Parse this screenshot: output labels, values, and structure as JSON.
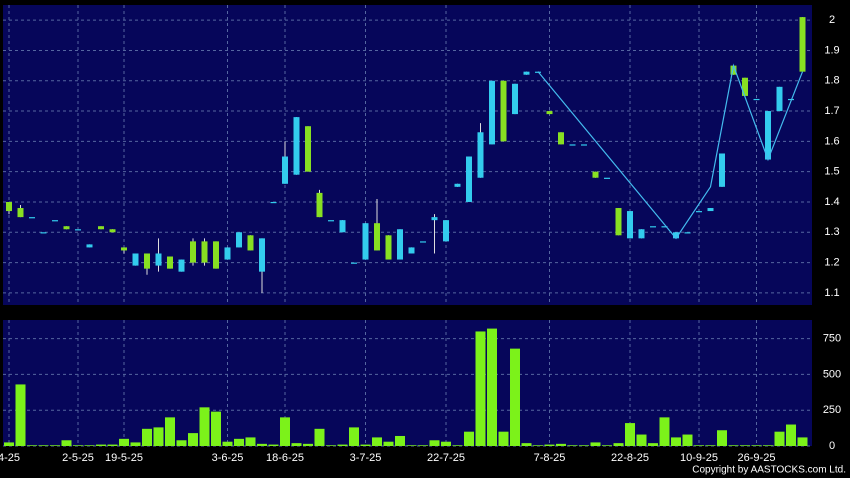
{
  "chart_data": {
    "type": "candlestick",
    "categories": [
      "4-25",
      null,
      null,
      null,
      null,
      null,
      "2-5-25",
      null,
      null,
      null,
      "19-5-25",
      null,
      null,
      null,
      null,
      null,
      null,
      null,
      null,
      "3-6-25",
      null,
      null,
      null,
      null,
      "18-6-25",
      null,
      null,
      null,
      null,
      null,
      null,
      "3-7-25",
      null,
      null,
      null,
      null,
      null,
      null,
      "22-7-25",
      null,
      null,
      null,
      null,
      null,
      null,
      null,
      null,
      "7-8-25",
      null,
      null,
      null,
      null,
      null,
      null,
      "22-8-25",
      null,
      null,
      null,
      null,
      null,
      "10-9-25",
      null,
      null,
      null,
      null,
      "26-9-25",
      null,
      null,
      null,
      null
    ],
    "open": [
      1.4,
      1.38,
      1.35,
      1.3,
      1.34,
      1.32,
      1.31,
      1.25,
      1.32,
      1.31,
      1.25,
      1.19,
      1.23,
      1.19,
      1.22,
      1.17,
      1.27,
      1.27,
      1.27,
      1.21,
      1.25,
      1.29,
      1.17,
      1.4,
      1.46,
      1.49,
      1.65,
      1.43,
      1.34,
      1.3,
      1.2,
      1.21,
      1.33,
      1.29,
      1.21,
      1.23,
      1.27,
      1.34,
      1.27,
      1.45,
      1.4,
      1.48,
      1.59,
      1.8,
      1.69,
      1.82,
      1.83,
      1.7,
      1.63,
      1.59,
      1.59,
      1.5,
      1.48,
      1.38,
      1.28,
      1.28,
      1.32,
      1.32,
      1.28,
      1.3,
      1.37,
      1.37,
      1.45,
      1.85,
      1.81,
      1.74,
      1.54,
      1.7,
      1.74,
      2.01
    ],
    "high": [
      1.4,
      1.39,
      1.35,
      1.3,
      1.34,
      1.32,
      1.31,
      1.26,
      1.32,
      1.31,
      1.25,
      1.23,
      1.23,
      1.28,
      1.22,
      1.21,
      1.28,
      1.28,
      1.27,
      1.25,
      1.3,
      1.29,
      1.28,
      1.4,
      1.6,
      1.68,
      1.65,
      1.44,
      1.34,
      1.34,
      1.2,
      1.33,
      1.41,
      1.29,
      1.31,
      1.25,
      1.27,
      1.36,
      1.34,
      1.46,
      1.55,
      1.66,
      1.8,
      1.8,
      1.79,
      1.83,
      1.83,
      1.7,
      1.63,
      1.59,
      1.59,
      1.5,
      1.48,
      1.38,
      1.37,
      1.31,
      1.32,
      1.32,
      1.3,
      1.3,
      1.37,
      1.38,
      1.56,
      1.85,
      1.81,
      1.74,
      1.7,
      1.78,
      1.74,
      2.01
    ],
    "low": [
      1.36,
      1.35,
      1.35,
      1.3,
      1.34,
      1.31,
      1.31,
      1.25,
      1.31,
      1.3,
      1.23,
      1.19,
      1.16,
      1.17,
      1.18,
      1.17,
      1.19,
      1.19,
      1.18,
      1.21,
      1.25,
      1.24,
      1.1,
      1.4,
      1.46,
      1.49,
      1.5,
      1.35,
      1.34,
      1.3,
      1.2,
      1.21,
      1.24,
      1.21,
      1.21,
      1.23,
      1.27,
      1.23,
      1.27,
      1.45,
      1.4,
      1.48,
      1.59,
      1.6,
      1.69,
      1.82,
      1.83,
      1.69,
      1.59,
      1.59,
      1.59,
      1.48,
      1.48,
      1.29,
      1.28,
      1.28,
      1.32,
      1.32,
      1.28,
      1.3,
      1.37,
      1.37,
      1.45,
      1.82,
      1.75,
      1.74,
      1.54,
      1.7,
      1.74,
      1.83
    ],
    "close": [
      1.37,
      1.35,
      1.35,
      1.3,
      1.34,
      1.31,
      1.31,
      1.26,
      1.31,
      1.3,
      1.24,
      1.23,
      1.18,
      1.23,
      1.18,
      1.21,
      1.2,
      1.2,
      1.18,
      1.25,
      1.3,
      1.24,
      1.28,
      1.4,
      1.55,
      1.68,
      1.5,
      1.35,
      1.34,
      1.34,
      1.2,
      1.33,
      1.24,
      1.21,
      1.31,
      1.25,
      1.27,
      1.35,
      1.34,
      1.46,
      1.55,
      1.63,
      1.8,
      1.6,
      1.79,
      1.83,
      1.83,
      1.69,
      1.59,
      1.59,
      1.59,
      1.48,
      1.48,
      1.29,
      1.37,
      1.31,
      1.32,
      1.32,
      1.3,
      1.3,
      1.37,
      1.38,
      1.56,
      1.82,
      1.75,
      1.74,
      1.7,
      1.78,
      1.74,
      1.83
    ],
    "volume": [
      25,
      430,
      5,
      5,
      5,
      40,
      5,
      5,
      10,
      10,
      50,
      25,
      120,
      130,
      200,
      40,
      90,
      270,
      240,
      30,
      50,
      60,
      15,
      10,
      200,
      20,
      15,
      120,
      5,
      10,
      130,
      10,
      60,
      30,
      70,
      5,
      5,
      40,
      30,
      5,
      100,
      800,
      820,
      100,
      680,
      20,
      5,
      10,
      15,
      5,
      5,
      25,
      5,
      20,
      160,
      80,
      20,
      200,
      60,
      80,
      5,
      5,
      110,
      5,
      5,
      5,
      5,
      100,
      150,
      60
    ],
    "line": {
      "x": [
        46,
        58,
        61,
        63,
        66,
        69
      ],
      "values": [
        1.83,
        1.28,
        1.45,
        1.85,
        1.54,
        1.83
      ]
    },
    "up_color": "#33ccee",
    "down_color": "#88e022",
    "volume_color": "#7cf21a",
    "line_color": "#44bbee",
    "ylim": [
      1.06,
      2.05
    ],
    "yticks": [
      1.1,
      1.2,
      1.3,
      1.4,
      1.5,
      1.6,
      1.7,
      1.8,
      1.9,
      2
    ],
    "volume_ylim": [
      0,
      880
    ],
    "volume_yticks": [
      0,
      250,
      500,
      750
    ],
    "grid": true,
    "footer": "Copyright by AASTOCKS.com Ltd."
  }
}
